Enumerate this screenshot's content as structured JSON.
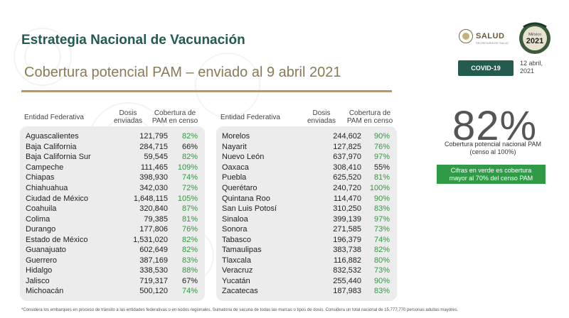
{
  "header": {
    "title": "Estrategia Nacional de Vacunación",
    "subtitle": "Cobertura potencial PAM – enviado al 9 abril 2021"
  },
  "logos": {
    "salud": "SALUD",
    "salud_sub": "SECRETARÍA DE SALUD",
    "seal_top": "México",
    "seal_year": "2021"
  },
  "badge": {
    "label": "COVID-19"
  },
  "date": {
    "line1": "12 abril,",
    "line2": "2021"
  },
  "columns": {
    "entity": "Entidad Federativa",
    "doses_1": "Dosis",
    "doses_2": "enviadas",
    "coverage_1": "Cobertura de",
    "coverage_2": "PAM en censo"
  },
  "left_table": [
    {
      "entity": "Aguascalientes",
      "doses": "121,795",
      "coverage": "82%",
      "green": true
    },
    {
      "entity": "Baja California",
      "doses": "284,715",
      "coverage": "66%",
      "green": false
    },
    {
      "entity": "Baja California Sur",
      "doses": "59,545",
      "coverage": "82%",
      "green": true
    },
    {
      "entity": "Campeche",
      "doses": "111,465",
      "coverage": "109%",
      "green": true
    },
    {
      "entity": "Chiapas",
      "doses": "398,930",
      "coverage": "74%",
      "green": true
    },
    {
      "entity": "Chiahuahua",
      "doses": "342,030",
      "coverage": "72%",
      "green": true
    },
    {
      "entity": "Ciudad de México",
      "doses": "1,648,115",
      "coverage": "105%",
      "green": true
    },
    {
      "entity": "Coahuila",
      "doses": "320,840",
      "coverage": "87%",
      "green": true
    },
    {
      "entity": "Colima",
      "doses": "79,385",
      "coverage": "81%",
      "green": true
    },
    {
      "entity": "Durango",
      "doses": "177,806",
      "coverage": "76%",
      "green": true
    },
    {
      "entity": "Estado de México",
      "doses": "1,531,020",
      "coverage": "82%",
      "green": true
    },
    {
      "entity": "Guanajuato",
      "doses": "602,649",
      "coverage": "82%",
      "green": true
    },
    {
      "entity": "Guerrero",
      "doses": "387,169",
      "coverage": "83%",
      "green": true
    },
    {
      "entity": "Hidalgo",
      "doses": "338,530",
      "coverage": "88%",
      "green": true
    },
    {
      "entity": "Jalisco",
      "doses": "719,317",
      "coverage": "67%",
      "green": false
    },
    {
      "entity": "Michoacán",
      "doses": "500,120",
      "coverage": "74%",
      "green": true
    }
  ],
  "right_table": [
    {
      "entity": "Morelos",
      "doses": "244,602",
      "coverage": "90%",
      "green": true
    },
    {
      "entity": "Nayarit",
      "doses": "127,825",
      "coverage": "76%",
      "green": true
    },
    {
      "entity": "Nuevo León",
      "doses": "637,970",
      "coverage": "97%",
      "green": true
    },
    {
      "entity": "Oaxaca",
      "doses": "308,410",
      "coverage": "55%",
      "green": false
    },
    {
      "entity": "Puebla",
      "doses": "625,520",
      "coverage": "81%",
      "green": true
    },
    {
      "entity": "Querétaro",
      "doses": "240,720",
      "coverage": "100%",
      "green": true
    },
    {
      "entity": "Quintana Roo",
      "doses": "114,470",
      "coverage": "90%",
      "green": true
    },
    {
      "entity": "San Luis Potosí",
      "doses": "310,250",
      "coverage": "83%",
      "green": true
    },
    {
      "entity": "Sinaloa",
      "doses": "399,139",
      "coverage": "97%",
      "green": true
    },
    {
      "entity": "Sonora",
      "doses": "271,585",
      "coverage": "73%",
      "green": true
    },
    {
      "entity": "Tabasco",
      "doses": "196,379",
      "coverage": "74%",
      "green": true
    },
    {
      "entity": "Tamaulipas",
      "doses": "383,738",
      "coverage": "82%",
      "green": true
    },
    {
      "entity": "Tlaxcala",
      "doses": "116,882",
      "coverage": "80%",
      "green": true
    },
    {
      "entity": "Veracruz",
      "doses": "832,532",
      "coverage": "73%",
      "green": true
    },
    {
      "entity": "Yucatán",
      "doses": "255,440",
      "coverage": "90%",
      "green": true
    },
    {
      "entity": "Zacatecas",
      "doses": "187,983",
      "coverage": "83%",
      "green": true
    }
  ],
  "summary": {
    "percent": "82%",
    "caption_1": "Cobertura potencial nacional PAM",
    "caption_2": "(censo al 100%)",
    "note_1": "Cifras en verde es cobertura",
    "note_2": "mayor al 70% del censo PAM"
  },
  "footnote": "*Considera los embarques en proceso de tránsito a las entidades federativas o en nodos regionales. Sumatoria de vacuna de todas las marcas o tipos de dosis. Considera un total nacional de 15,777,770 personas adultas mayores.",
  "colors": {
    "brand_green": "#235b4e",
    "gold": "#b8995f",
    "coverage_green": "#2e9b3c",
    "note_green": "#2f9b47"
  }
}
